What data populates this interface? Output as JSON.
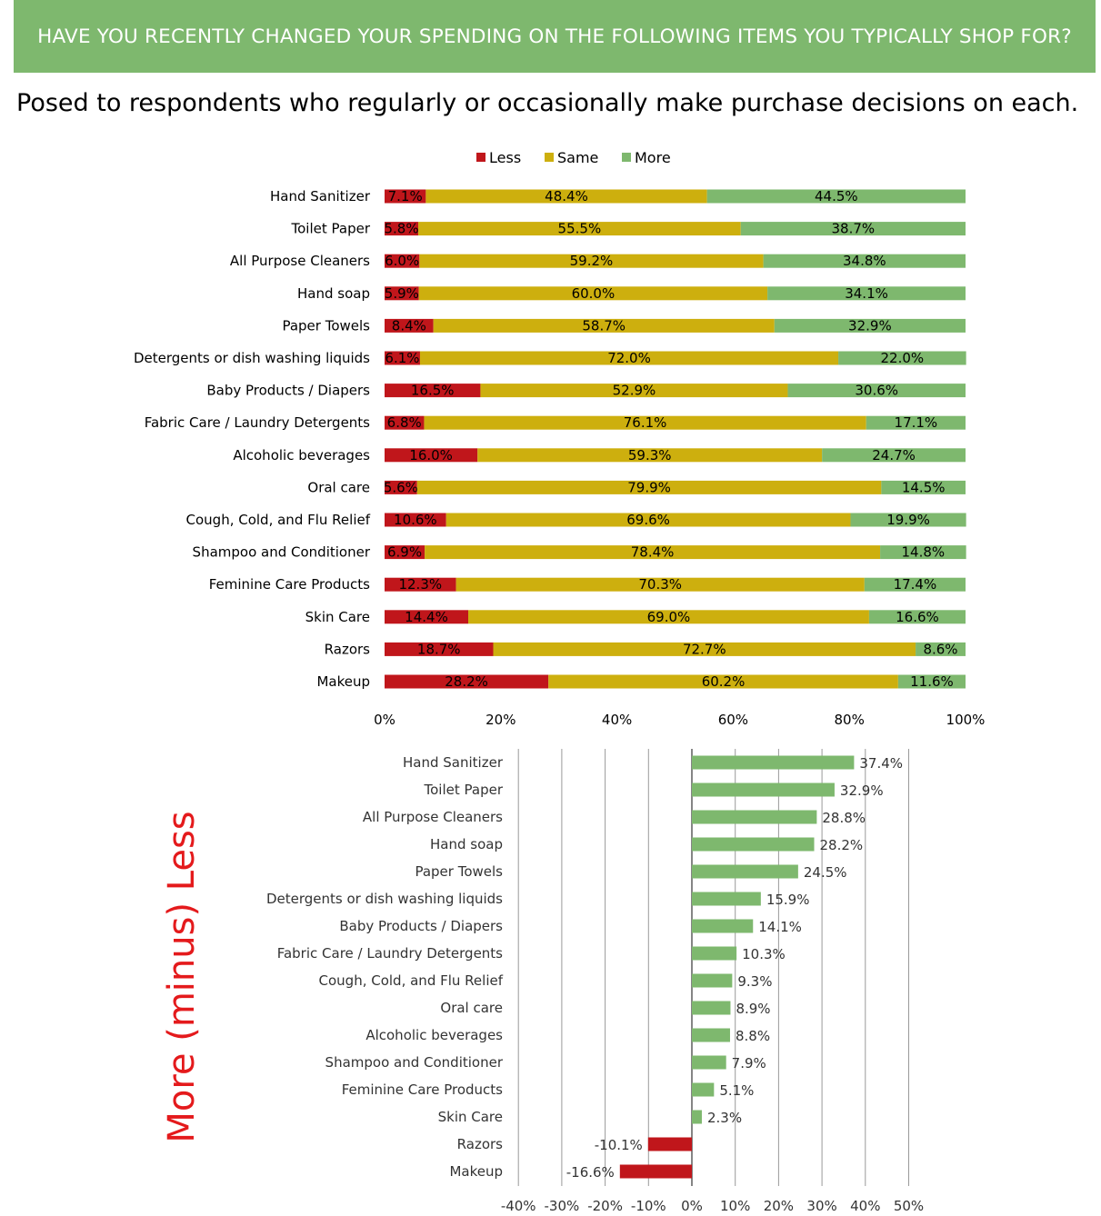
{
  "header": {
    "title": "HAVE YOU RECENTLY CHANGED YOUR SPENDING ON THE FOLLOWING ITEMS YOU TYPICALLY SHOP FOR?",
    "subtitle": "Posed to respondents who regularly or occasionally make purchase decisions on each."
  },
  "side_label": "More (minus) Less",
  "colors": {
    "less": "#c0161b",
    "same": "#cdaf0e",
    "more": "#7eb86e",
    "banner": "#7eb86e",
    "side_label": "#e41a1c"
  },
  "chart_data": [
    {
      "type": "bar",
      "orientation": "horizontal",
      "stacked": true,
      "legend_position": "top",
      "categories": [
        "Hand Sanitizer",
        "Toilet Paper",
        "All Purpose Cleaners",
        "Hand soap",
        "Paper Towels",
        "Detergents or dish washing liquids",
        "Baby Products / Diapers",
        "Fabric Care / Laundry Detergents",
        "Alcoholic beverages",
        "Oral care",
        "Cough, Cold, and Flu Relief",
        "Shampoo and Conditioner",
        "Feminine Care Products",
        "Skin Care",
        "Razors",
        "Makeup"
      ],
      "series": [
        {
          "name": "Less",
          "values": [
            7.1,
            5.8,
            6.0,
            5.9,
            8.4,
            6.1,
            16.5,
            6.8,
            16.0,
            5.6,
            10.6,
            6.9,
            12.3,
            14.4,
            18.7,
            28.2
          ],
          "labels": [
            "7.1%",
            "5.8%",
            "6.0%",
            "5.9%",
            "8.4%",
            "6.1%",
            "16.5%",
            "6.8%",
            "16.0%",
            "5.6%",
            "10.6%",
            "6.9%",
            "12.3%",
            "14.4%",
            "18.7%",
            "28.2%"
          ]
        },
        {
          "name": "Same",
          "values": [
            48.4,
            55.5,
            59.2,
            60.0,
            58.7,
            72.0,
            52.9,
            76.1,
            59.3,
            79.9,
            69.6,
            78.4,
            70.3,
            69.0,
            72.7,
            60.2
          ],
          "labels": [
            "48.4%",
            "55.5%",
            "59.2%",
            "60.0%",
            "58.7%",
            "72.0%",
            "52.9%",
            "76.1%",
            "59.3%",
            "79.9%",
            "69.6%",
            "78.4%",
            "70.3%",
            "69.0%",
            "72.7%",
            "60.2%"
          ]
        },
        {
          "name": "More",
          "values": [
            44.5,
            38.7,
            34.8,
            34.1,
            32.9,
            22.0,
            30.6,
            17.1,
            24.7,
            14.5,
            19.9,
            14.8,
            17.4,
            16.6,
            8.6,
            11.6
          ],
          "labels": [
            "44.5%",
            "38.7%",
            "34.8%",
            "34.1%",
            "32.9%",
            "22.0%",
            "30.6%",
            "17.1%",
            "24.7%",
            "14.5%",
            "19.9%",
            "14.8%",
            "17.4%",
            "16.6%",
            "8.6%",
            "11.6%"
          ]
        }
      ],
      "xlim": [
        0,
        100
      ],
      "xticks": [
        "0%",
        "20%",
        "40%",
        "60%",
        "80%",
        "100%"
      ],
      "grid": false
    },
    {
      "type": "bar",
      "orientation": "horizontal",
      "categories": [
        "Hand Sanitizer",
        "Toilet Paper",
        "All Purpose Cleaners",
        "Hand soap",
        "Paper Towels",
        "Detergents or dish washing liquids",
        "Baby Products / Diapers",
        "Fabric Care / Laundry Detergents",
        "Cough, Cold, and Flu Relief",
        "Oral care",
        "Alcoholic beverages",
        "Shampoo and Conditioner",
        "Feminine Care Products",
        "Skin Care",
        "Razors",
        "Makeup"
      ],
      "values": [
        37.4,
        32.9,
        28.8,
        28.2,
        24.5,
        15.9,
        14.1,
        10.3,
        9.3,
        8.9,
        8.8,
        7.9,
        5.1,
        2.3,
        -10.1,
        -16.6
      ],
      "labels": [
        "37.4%",
        "32.9%",
        "28.8%",
        "28.2%",
        "24.5%",
        "15.9%",
        "14.1%",
        "10.3%",
        "9.3%",
        "8.9%",
        "8.8%",
        "7.9%",
        "5.1%",
        "2.3%",
        "-10.1%",
        "-16.6%"
      ],
      "xlim": [
        -40,
        50
      ],
      "xticks": [
        "-40%",
        "-30%",
        "-20%",
        "-10%",
        "0%",
        "10%",
        "20%",
        "30%",
        "40%",
        "50%"
      ],
      "grid": true
    }
  ]
}
